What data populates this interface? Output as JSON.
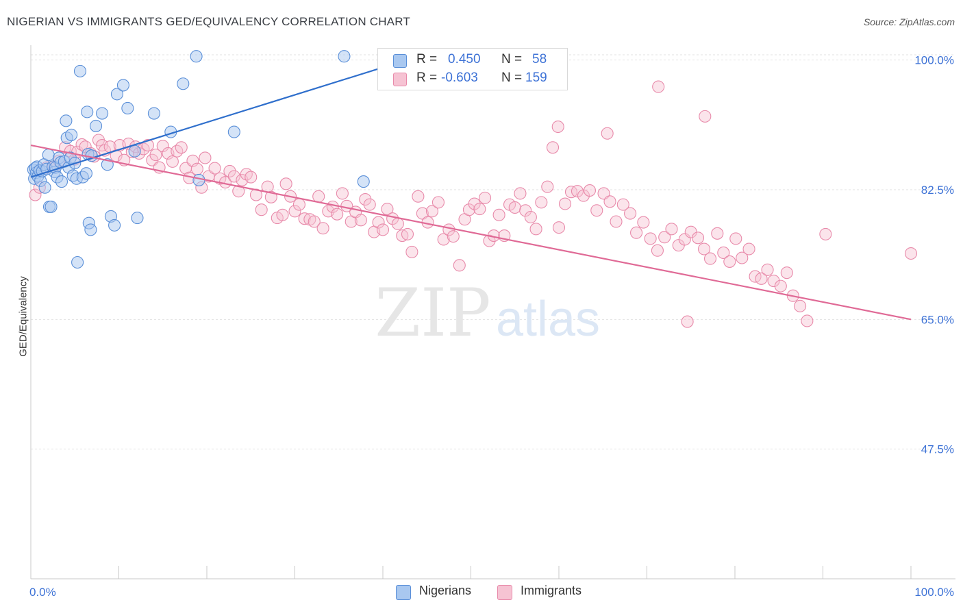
{
  "title": "NIGERIAN VS IMMIGRANTS GED/EQUIVALENCY CORRELATION CHART",
  "source": "Source: ZipAtlas.com",
  "watermark": {
    "zip": "ZIP",
    "atlas": "atlas"
  },
  "colors": {
    "nigerians_fill": "#a9c8f0",
    "nigerians_stroke": "#5a8fd8",
    "nigerians_line": "#2f6fcc",
    "immigrants_fill": "#f6c3d3",
    "immigrants_stroke": "#e88aaa",
    "immigrants_line": "#e06a96",
    "tick_label": "#3d72d6",
    "grid": "#e2e2e2"
  },
  "legend": {
    "row1": {
      "r_label": "R =",
      "r_value": "0.450",
      "n_label": "N =",
      "n_value": "58"
    },
    "row2": {
      "r_label": "R =",
      "r_value": "-0.603",
      "n_label": "N =",
      "n_value": "159"
    }
  },
  "bottom_legend": {
    "nigerians": "Nigerians",
    "immigrants": "Immigrants"
  },
  "chart_data": {
    "type": "scatter",
    "title": "NIGERIAN VS IMMIGRANTS GED/EQUIVALENCY CORRELATION CHART",
    "xlabel": "",
    "ylabel": "GED/Equivalency",
    "xlim": [
      0,
      100
    ],
    "ylim": [
      30,
      102
    ],
    "x_tick_labels": [
      "0.0%",
      "100.0%"
    ],
    "y_ticks": [
      47.5,
      65.0,
      82.5,
      100.0
    ],
    "y_tick_labels": [
      "47.5%",
      "65.0%",
      "82.5%",
      "100.0%"
    ],
    "grid": true,
    "legend_position": "top-center",
    "series": [
      {
        "name": "Nigerians",
        "R": 0.45,
        "N": 58,
        "trend": [
          [
            0.0,
            84.2
          ],
          [
            40.0,
            99.0
          ]
        ],
        "points": [
          [
            0.3,
            85.2
          ],
          [
            0.4,
            84.0
          ],
          [
            0.5,
            85.4
          ],
          [
            0.6,
            84.8
          ],
          [
            0.7,
            85.6
          ],
          [
            0.8,
            84.3
          ],
          [
            1.0,
            85.1
          ],
          [
            1.1,
            83.7
          ],
          [
            1.3,
            85.0
          ],
          [
            1.5,
            85.9
          ],
          [
            1.6,
            82.8
          ],
          [
            1.8,
            85.3
          ],
          [
            2.0,
            87.2
          ],
          [
            2.1,
            80.2
          ],
          [
            2.3,
            80.2
          ],
          [
            2.5,
            85.6
          ],
          [
            2.7,
            84.9
          ],
          [
            2.8,
            85.5
          ],
          [
            3.0,
            84.2
          ],
          [
            3.2,
            86.8
          ],
          [
            3.4,
            86.2
          ],
          [
            3.5,
            83.6
          ],
          [
            3.8,
            86.3
          ],
          [
            4.0,
            91.8
          ],
          [
            4.1,
            89.5
          ],
          [
            4.3,
            85.5
          ],
          [
            4.5,
            86.8
          ],
          [
            4.6,
            89.9
          ],
          [
            4.8,
            84.4
          ],
          [
            5.0,
            86.1
          ],
          [
            5.3,
            72.7
          ],
          [
            5.2,
            84.0
          ],
          [
            5.6,
            98.5
          ],
          [
            5.9,
            84.2
          ],
          [
            6.3,
            84.7
          ],
          [
            6.5,
            87.3
          ],
          [
            6.4,
            93.0
          ],
          [
            6.6,
            78.0
          ],
          [
            6.8,
            77.1
          ],
          [
            6.9,
            87.1
          ],
          [
            7.4,
            91.1
          ],
          [
            8.1,
            92.8
          ],
          [
            8.7,
            85.9
          ],
          [
            9.1,
            78.9
          ],
          [
            9.5,
            77.7
          ],
          [
            9.8,
            95.4
          ],
          [
            10.5,
            96.6
          ],
          [
            11.0,
            93.5
          ],
          [
            11.8,
            87.7
          ],
          [
            12.1,
            78.7
          ],
          [
            14.0,
            92.8
          ],
          [
            15.9,
            90.3
          ],
          [
            17.3,
            96.8
          ],
          [
            18.8,
            100.5
          ],
          [
            19.1,
            83.8
          ],
          [
            23.1,
            90.3
          ],
          [
            35.6,
            100.5
          ],
          [
            37.8,
            83.6
          ]
        ]
      },
      {
        "name": "Immigrants",
        "R": -0.603,
        "N": 159,
        "trend": [
          [
            0.0,
            88.5
          ],
          [
            100.0,
            65.0
          ]
        ],
        "points": [
          [
            0.5,
            81.8
          ],
          [
            1.0,
            82.8
          ],
          [
            1.8,
            85.5
          ],
          [
            2.6,
            85.6
          ],
          [
            3.2,
            86.4
          ],
          [
            3.9,
            88.2
          ],
          [
            4.5,
            87.7
          ],
          [
            5.0,
            86.6
          ],
          [
            5.3,
            87.6
          ],
          [
            5.8,
            88.6
          ],
          [
            6.2,
            88.3
          ],
          [
            6.8,
            87.4
          ],
          [
            7.2,
            87.0
          ],
          [
            7.7,
            89.2
          ],
          [
            8.1,
            88.5
          ],
          [
            8.4,
            87.8
          ],
          [
            9.0,
            88.3
          ],
          [
            9.7,
            87.1
          ],
          [
            10.1,
            88.5
          ],
          [
            10.6,
            86.5
          ],
          [
            11.1,
            88.7
          ],
          [
            11.5,
            87.6
          ],
          [
            11.9,
            88.3
          ],
          [
            12.3,
            87.4
          ],
          [
            12.8,
            88.0
          ],
          [
            13.3,
            88.5
          ],
          [
            13.8,
            86.5
          ],
          [
            14.2,
            87.2
          ],
          [
            14.6,
            85.5
          ],
          [
            15.0,
            88.4
          ],
          [
            15.6,
            87.4
          ],
          [
            16.1,
            86.3
          ],
          [
            16.6,
            87.7
          ],
          [
            17.1,
            88.2
          ],
          [
            17.6,
            85.4
          ],
          [
            18.0,
            84.1
          ],
          [
            18.4,
            86.4
          ],
          [
            18.9,
            85.3
          ],
          [
            19.4,
            82.8
          ],
          [
            19.8,
            86.8
          ],
          [
            20.2,
            84.3
          ],
          [
            20.9,
            85.4
          ],
          [
            21.5,
            84.0
          ],
          [
            22.1,
            83.5
          ],
          [
            22.6,
            85.0
          ],
          [
            23.1,
            84.3
          ],
          [
            23.6,
            82.3
          ],
          [
            24.0,
            83.8
          ],
          [
            24.5,
            84.6
          ],
          [
            25.0,
            84.2
          ],
          [
            25.6,
            81.8
          ],
          [
            26.2,
            79.8
          ],
          [
            26.9,
            82.9
          ],
          [
            27.3,
            81.5
          ],
          [
            28.0,
            78.7
          ],
          [
            28.6,
            79.1
          ],
          [
            29.0,
            83.3
          ],
          [
            29.5,
            81.6
          ],
          [
            30.0,
            79.6
          ],
          [
            30.5,
            80.5
          ],
          [
            31.1,
            78.6
          ],
          [
            31.7,
            78.5
          ],
          [
            32.2,
            78.2
          ],
          [
            32.7,
            81.6
          ],
          [
            33.2,
            77.3
          ],
          [
            33.8,
            79.6
          ],
          [
            34.3,
            80.2
          ],
          [
            34.8,
            79.2
          ],
          [
            35.4,
            82.0
          ],
          [
            35.9,
            80.3
          ],
          [
            36.4,
            78.2
          ],
          [
            36.9,
            79.5
          ],
          [
            37.5,
            78.4
          ],
          [
            38.0,
            81.2
          ],
          [
            38.5,
            80.5
          ],
          [
            39.0,
            76.8
          ],
          [
            39.5,
            78.1
          ],
          [
            40.0,
            77.1
          ],
          [
            40.5,
            79.9
          ],
          [
            41.1,
            78.6
          ],
          [
            41.7,
            77.9
          ],
          [
            42.2,
            76.3
          ],
          [
            42.8,
            76.5
          ],
          [
            43.3,
            74.1
          ],
          [
            44.0,
            81.6
          ],
          [
            44.5,
            79.3
          ],
          [
            45.1,
            78.1
          ],
          [
            45.6,
            79.6
          ],
          [
            46.3,
            80.8
          ],
          [
            46.9,
            75.8
          ],
          [
            47.5,
            77.1
          ],
          [
            48.0,
            76.2
          ],
          [
            48.7,
            72.3
          ],
          [
            49.3,
            78.5
          ],
          [
            49.8,
            79.8
          ],
          [
            50.4,
            80.6
          ],
          [
            51.0,
            79.9
          ],
          [
            51.6,
            81.4
          ],
          [
            52.1,
            75.6
          ],
          [
            52.6,
            76.3
          ],
          [
            53.2,
            79.1
          ],
          [
            53.8,
            76.3
          ],
          [
            54.4,
            80.5
          ],
          [
            55.0,
            80.1
          ],
          [
            55.6,
            82.0
          ],
          [
            56.2,
            79.7
          ],
          [
            56.8,
            78.8
          ],
          [
            57.4,
            77.2
          ],
          [
            58.0,
            80.8
          ],
          [
            58.7,
            82.9
          ],
          [
            59.3,
            88.2
          ],
          [
            60.0,
            77.4
          ],
          [
            60.7,
            80.6
          ],
          [
            61.4,
            82.2
          ],
          [
            62.1,
            82.3
          ],
          [
            62.8,
            81.7
          ],
          [
            63.5,
            82.4
          ],
          [
            64.3,
            79.7
          ],
          [
            65.1,
            82.0
          ],
          [
            65.8,
            80.9
          ],
          [
            66.5,
            78.2
          ],
          [
            67.3,
            80.5
          ],
          [
            68.1,
            79.3
          ],
          [
            68.8,
            76.7
          ],
          [
            69.6,
            78.1
          ],
          [
            70.4,
            75.9
          ],
          [
            71.2,
            74.3
          ],
          [
            72.0,
            76.1
          ],
          [
            72.8,
            77.2
          ],
          [
            73.6,
            75.0
          ],
          [
            74.3,
            75.8
          ],
          [
            75.0,
            76.8
          ],
          [
            75.8,
            76.0
          ],
          [
            76.5,
            74.5
          ],
          [
            77.2,
            73.2
          ],
          [
            78.0,
            76.6
          ],
          [
            78.7,
            74.0
          ],
          [
            79.4,
            72.8
          ],
          [
            80.1,
            75.9
          ],
          [
            80.8,
            73.3
          ],
          [
            81.6,
            74.5
          ],
          [
            82.3,
            70.8
          ],
          [
            83.0,
            70.5
          ],
          [
            83.7,
            71.7
          ],
          [
            84.4,
            70.2
          ],
          [
            85.2,
            69.5
          ],
          [
            85.9,
            71.3
          ],
          [
            86.6,
            68.2
          ],
          [
            87.4,
            66.8
          ],
          [
            88.2,
            64.8
          ],
          [
            65.5,
            90.1
          ],
          [
            71.3,
            96.4
          ],
          [
            76.6,
            92.4
          ],
          [
            59.9,
            91.0
          ],
          [
            74.6,
            64.7
          ],
          [
            90.3,
            76.5
          ],
          [
            100.0,
            73.9
          ]
        ]
      }
    ]
  }
}
